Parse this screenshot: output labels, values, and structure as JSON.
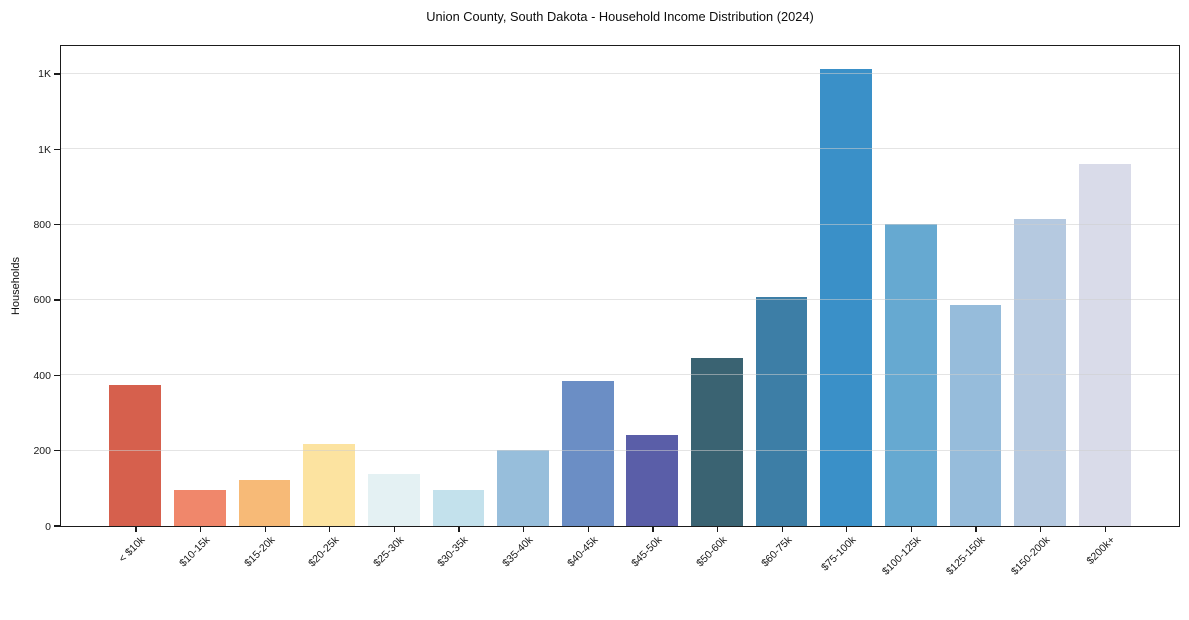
{
  "chart_data": {
    "type": "bar",
    "title": "Union County, South Dakota - Household Income Distribution (2024)",
    "xlabel": "",
    "ylabel": "Households",
    "categories": [
      "< $10k",
      "$10-15k",
      "$15-20k",
      "$20-25k",
      "$25-30k",
      "$30-35k",
      "$35-40k",
      "$40-45k",
      "$45-50k",
      "$50-60k",
      "$60-75k",
      "$75-100k",
      "$100-125k",
      "$125-150k",
      "$150-200k",
      "$200k+"
    ],
    "values": [
      374,
      95,
      122,
      219,
      138,
      96,
      202,
      385,
      242,
      447,
      607,
      1213,
      801,
      587,
      816,
      960
    ],
    "bar_colors": [
      "#d6604d",
      "#f0876b",
      "#f7ba77",
      "#fce3a0",
      "#e4f1f3",
      "#c3e1ec",
      "#97bedb",
      "#6b8ec5",
      "#5a5ea8",
      "#3a6372",
      "#3d7ea6",
      "#3a90c8",
      "#66a9d1",
      "#96bcdb",
      "#b5c9e0",
      "#d9dbe9"
    ],
    "ylim": [
      0,
      1274
    ],
    "yticks": [
      {
        "value": 0,
        "label": "0"
      },
      {
        "value": 200,
        "label": "200"
      },
      {
        "value": 400,
        "label": "400"
      },
      {
        "value": 600,
        "label": "600"
      },
      {
        "value": 800,
        "label": "800"
      },
      {
        "value": 1000,
        "label": "1K"
      },
      {
        "value": 1200,
        "label": "1K"
      }
    ],
    "grid": "horizontal-over-bars",
    "legend": "none",
    "plot_border": "#1b1b1b",
    "background": "#ffffff"
  }
}
